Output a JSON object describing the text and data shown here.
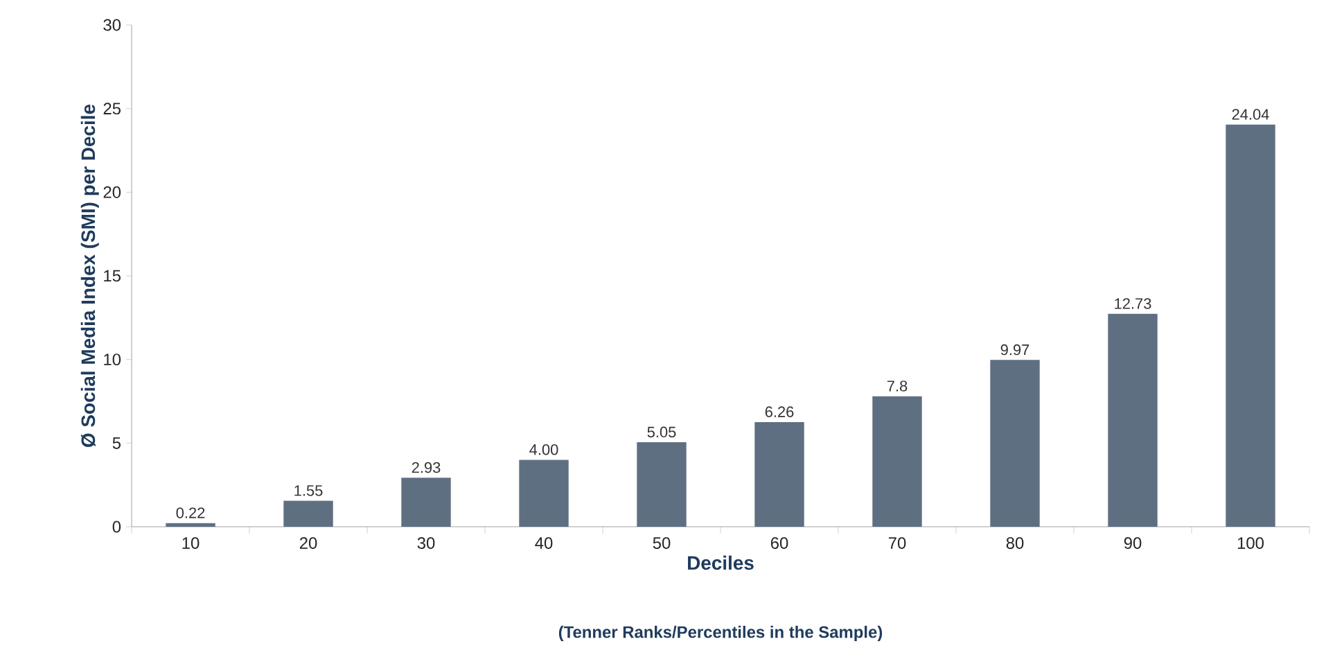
{
  "chart_data": {
    "type": "bar",
    "categories": [
      "10",
      "20",
      "30",
      "40",
      "50",
      "60",
      "70",
      "80",
      "90",
      "100"
    ],
    "values": [
      0.22,
      1.55,
      2.93,
      4.0,
      5.05,
      6.26,
      7.8,
      9.97,
      12.73,
      24.04
    ],
    "value_labels": [
      "0.22",
      "1.55",
      "2.93",
      "4.00",
      "5.05",
      "6.26",
      "7.8",
      "9.97",
      "12.73",
      "24.04"
    ],
    "color": "#5f6f82",
    "ylim": [
      0,
      30
    ],
    "yticks": [
      0,
      5,
      10,
      15,
      20,
      25,
      30
    ],
    "xlabel": "Deciles",
    "ylabel": "Ø Social Media Index (SMI) per Decile",
    "annotations": [
      "(Tenner Ranks/Percentiles in the Sample)"
    ]
  }
}
